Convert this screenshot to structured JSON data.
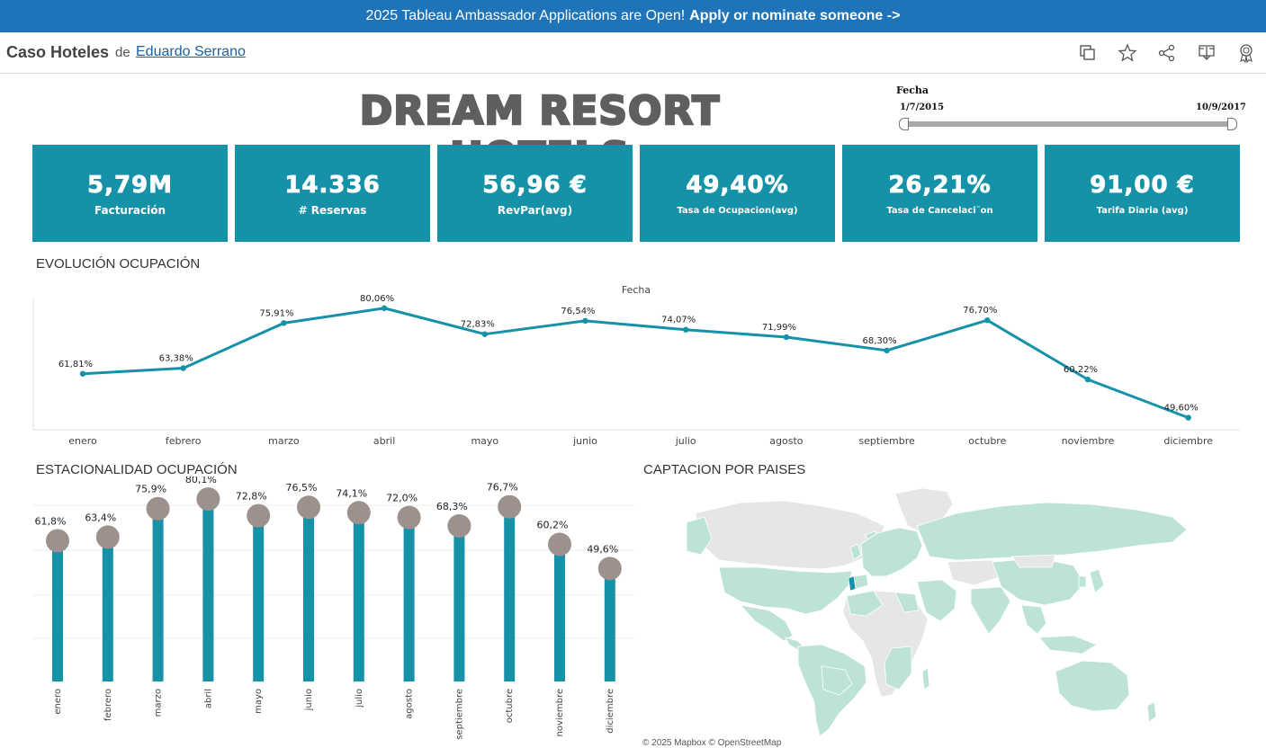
{
  "banner": {
    "text": "2025 Tableau Ambassador Applications are Open!",
    "link": "Apply or nominate someone ->"
  },
  "header": {
    "title": "Caso Hoteles",
    "by": "de",
    "author": "Eduardo Serrano"
  },
  "dashboard": {
    "title": "DREAM RESORT HOTELS",
    "date_filter": {
      "label": "Fecha",
      "start": "1/7/2015",
      "end": "10/9/2017"
    }
  },
  "kpis": [
    {
      "value": "5,79M",
      "label": "Facturación"
    },
    {
      "value": "14.336",
      "label": "# Reservas"
    },
    {
      "value": "56,96 €",
      "label": "RevPar(avg)"
    },
    {
      "value": "49,40%",
      "label": "Tasa de Ocupacion(avg)"
    },
    {
      "value": "26,21%",
      "label": "Tasa de Cancelaci¨on"
    },
    {
      "value": "91,00 €",
      "label": "Tarifa Diaria (avg)"
    }
  ],
  "colors": {
    "accent": "#1591a8",
    "lollipop_head": "#9d918d",
    "map_fill": "#bde3d8",
    "map_highlight": "#1591a8"
  },
  "chart_data": [
    {
      "type": "line",
      "title": "EVOLUCIÓN OCUPACIÓN",
      "axis_title": "Fecha",
      "categories": [
        "enero",
        "febrero",
        "marzo",
        "abril",
        "mayo",
        "junio",
        "julio",
        "agosto",
        "septiembre",
        "octubre",
        "noviembre",
        "diciembre"
      ],
      "values": [
        61.81,
        63.38,
        75.91,
        80.06,
        72.83,
        76.54,
        74.07,
        71.99,
        68.3,
        76.7,
        60.22,
        49.6
      ],
      "value_labels": [
        "61,81%",
        "63,38%",
        "75,91%",
        "80,06%",
        "72,83%",
        "76,54%",
        "74,07%",
        "71,99%",
        "68,30%",
        "76,70%",
        "60,22%",
        "49,60%"
      ],
      "ylim": [
        47,
        82
      ]
    },
    {
      "type": "bar",
      "title": "ESTACIONALIDAD OCUPACIÓN",
      "categories": [
        "enero",
        "febrero",
        "marzo",
        "abril",
        "mayo",
        "junio",
        "julio",
        "agosto",
        "septiembre",
        "octubre",
        "noviembre",
        "diciembre"
      ],
      "values": [
        61.8,
        63.4,
        75.9,
        80.1,
        72.8,
        76.5,
        74.1,
        72.0,
        68.3,
        76.7,
        60.2,
        49.6
      ],
      "value_labels": [
        "61,8%",
        "63,4%",
        "75,9%",
        "80,1%",
        "72,8%",
        "76,5%",
        "74,1%",
        "72,0%",
        "68,3%",
        "76,7%",
        "60,2%",
        "49,6%"
      ],
      "ylim": [
        0,
        90
      ],
      "grid": true
    }
  ],
  "map": {
    "title": "CAPTACION POR PAISES",
    "credit": "© 2025 Mapbox © OpenStreetMap"
  }
}
